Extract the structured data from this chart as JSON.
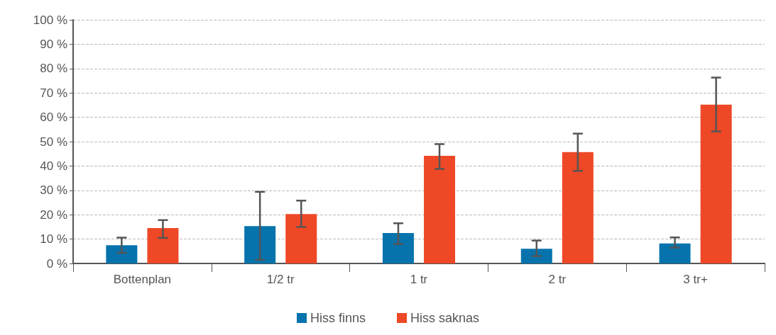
{
  "chart_data": {
    "type": "bar",
    "categories": [
      "Bottenplan",
      "1/2 tr",
      "1 tr",
      "2 tr",
      "3 tr+"
    ],
    "series": [
      {
        "name": "Hiss finns",
        "color": "#0673ad",
        "values": [
          7.5,
          15.3,
          12.5,
          6,
          8.2
        ],
        "errors": [
          [
            4.4,
            10.6
          ],
          [
            1.5,
            29.4
          ],
          [
            8,
            16.5
          ],
          [
            3,
            9.4
          ],
          [
            6.5,
            10.7
          ]
        ]
      },
      {
        "name": "Hiss saknas",
        "color": "#ee4826",
        "values": [
          14.5,
          20.3,
          44.2,
          45.7,
          65.2
        ],
        "errors": [
          [
            10.5,
            17.8
          ],
          [
            15,
            25.8
          ],
          [
            38.8,
            49
          ],
          [
            38,
            53.3
          ],
          [
            54.2,
            76.3
          ]
        ]
      }
    ],
    "ylim": [
      0,
      100
    ],
    "yticks": [
      {
        "value": 0,
        "label": "0 %"
      },
      {
        "value": 10,
        "label": "10 %"
      },
      {
        "value": 20,
        "label": "20 %"
      },
      {
        "value": 30,
        "label": "30 %"
      },
      {
        "value": 40,
        "label": "40 %"
      },
      {
        "value": 50,
        "label": "50 %"
      },
      {
        "value": 60,
        "label": "60 %"
      },
      {
        "value": 70,
        "label": "70 %"
      },
      {
        "value": 80,
        "label": "80 %"
      },
      {
        "value": 90,
        "label": "90 %"
      },
      {
        "value": 100,
        "label": "100 %"
      }
    ],
    "grid": "y",
    "legend": "bottom"
  }
}
